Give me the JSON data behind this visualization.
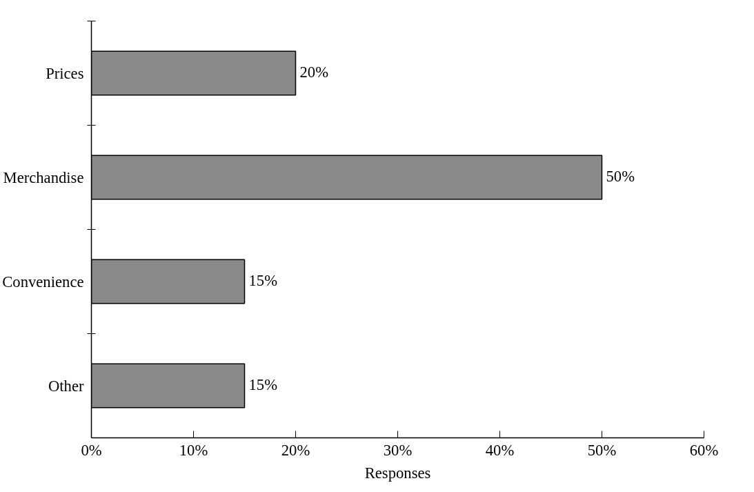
{
  "chart_data": {
    "type": "bar",
    "orientation": "horizontal",
    "categories": [
      "Prices",
      "Merchandise",
      "Convenience",
      "Other"
    ],
    "values": [
      20,
      50,
      15,
      15
    ],
    "value_labels": [
      "20%",
      "50%",
      "15%",
      "15%"
    ],
    "color": "#8a8a8a",
    "xlabel": "Responses",
    "xlim": [
      0,
      60
    ],
    "xticks": [
      {
        "value": 0,
        "label": "0%"
      },
      {
        "value": 10,
        "label": "10%"
      },
      {
        "value": 20,
        "label": "20%"
      },
      {
        "value": 30,
        "label": "30%"
      },
      {
        "value": 40,
        "label": "40%"
      },
      {
        "value": 50,
        "label": "50%"
      },
      {
        "value": 60,
        "label": "60%"
      }
    ],
    "grid": false
  }
}
